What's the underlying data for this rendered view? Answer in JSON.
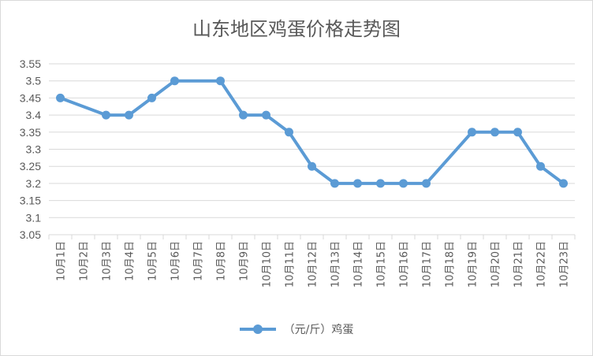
{
  "chart_data": {
    "type": "line",
    "title": "山东地区鸡蛋价格走势图",
    "categories": [
      "10月1日",
      "10月2日",
      "10月3日",
      "10月4日",
      "10月5日",
      "10月6日",
      "10月7日",
      "10月8日",
      "10月9日",
      "10月10日",
      "10月11日",
      "10月12日",
      "10月13日",
      "10月14日",
      "10月15日",
      "10月16日",
      "10月17日",
      "10月18日",
      "10月19日",
      "10月20日",
      "10月21日",
      "10月22日",
      "10月23日"
    ],
    "series": [
      {
        "name": "（元/斤）鸡蛋",
        "values": [
          3.45,
          null,
          3.4,
          3.4,
          3.45,
          3.5,
          null,
          3.5,
          3.4,
          3.4,
          3.35,
          3.25,
          3.2,
          3.2,
          3.2,
          3.2,
          3.2,
          null,
          3.35,
          3.35,
          3.35,
          3.25,
          3.2
        ]
      }
    ],
    "yticks": [
      "3.05",
      "3.1",
      "3.15",
      "3.2",
      "3.25",
      "3.3",
      "3.35",
      "3.4",
      "3.45",
      "3.5",
      "3.55"
    ],
    "ylim": [
      3.05,
      3.55
    ],
    "xlabel": "",
    "ylabel": "",
    "grid": "horizontal",
    "legend_position": "bottom",
    "colors": {
      "series": "#5b9bd5",
      "grid": "#d9d9d9",
      "text": "#595959"
    }
  }
}
